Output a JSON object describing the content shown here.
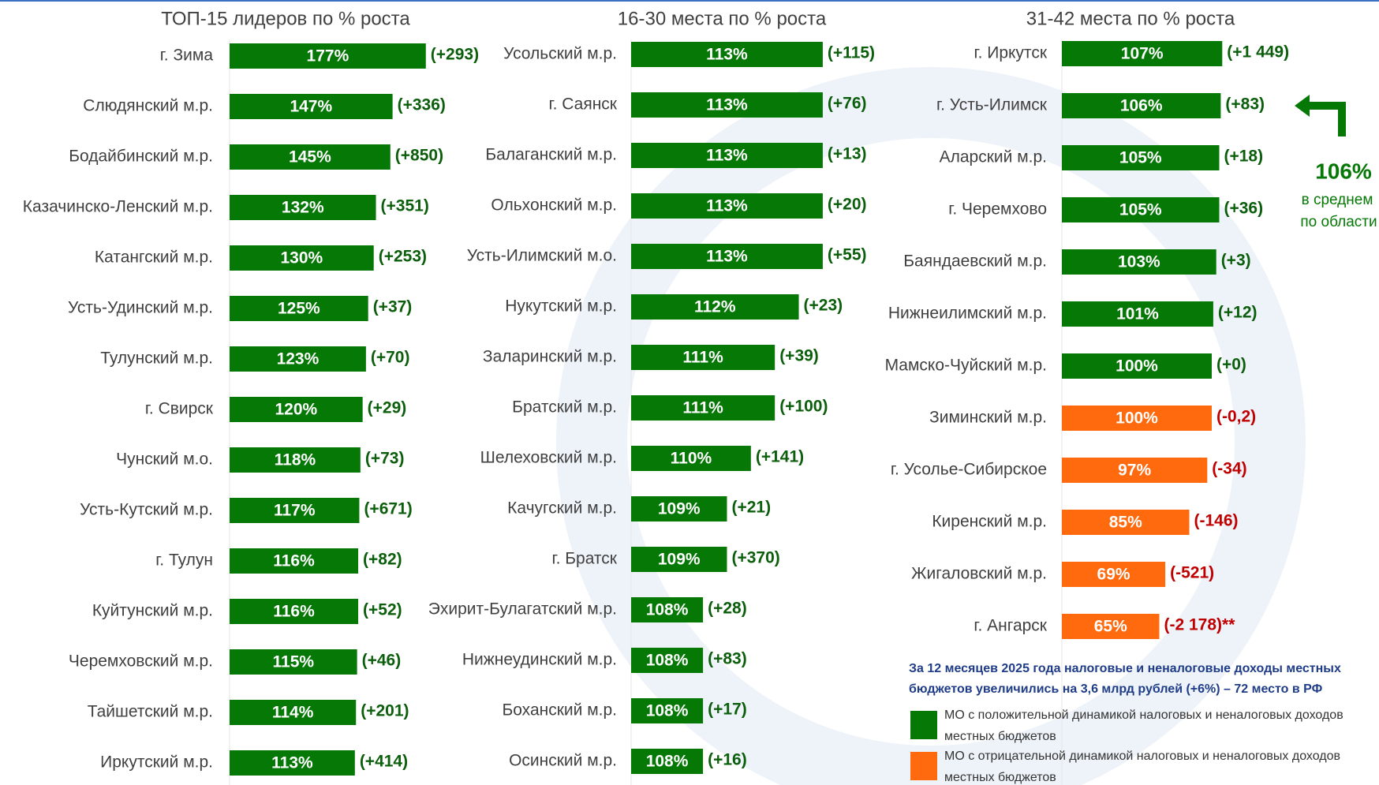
{
  "chart_data": [
    {
      "type": "bar",
      "title": "ТОП-15 лидеров по % роста",
      "categories": [
        "г. Зима",
        "Слюдянский м.р.",
        "Бодайбинский м.р.",
        "Казачинско-Ленский м.р.",
        "Катангский м.р.",
        "Усть-Удинский м.р.",
        "Тулунский м.р.",
        "г. Свирск",
        "Чунский м.о.",
        "Усть-Кутский м.р.",
        "г. Тулун",
        "Куйтунский м.р.",
        "Черемховский м.р.",
        "Тайшетский м.р.",
        "Иркутский м.р."
      ],
      "values": [
        177,
        147,
        145,
        132,
        130,
        125,
        123,
        120,
        118,
        117,
        116,
        116,
        115,
        114,
        113
      ],
      "value_labels": [
        "177%",
        "147%",
        "145%",
        "132%",
        "130%",
        "125%",
        "123%",
        "120%",
        "118%",
        "117%",
        "116%",
        "116%",
        "115%",
        "114%",
        "113%"
      ],
      "change_labels": [
        "(+293)",
        "(+336)",
        "(+850)",
        "(+351)",
        "(+253)",
        "(+37)",
        "(+70)",
        "(+29)",
        "(+73)",
        "(+671)",
        "(+82)",
        "(+52)",
        "(+46)",
        "(+201)",
        "(+414)"
      ],
      "colors": [
        "#067806",
        "#067806",
        "#067806",
        "#067806",
        "#067806",
        "#067806",
        "#067806",
        "#067806",
        "#067806",
        "#067806",
        "#067806",
        "#067806",
        "#067806",
        "#067806",
        "#067806"
      ],
      "xlim": [
        0,
        180
      ]
    },
    {
      "type": "bar",
      "title": "16-30 места по % роста",
      "categories": [
        "Усольский м.р.",
        "г. Саянск",
        "Балаганский м.р.",
        "Ольхонский м.р.",
        "Усть-Илимский м.о.",
        "Нукутский м.р.",
        "Заларинский м.р.",
        "Братский м.р.",
        "Шелеховский м.р.",
        "Качугский м.р.",
        "г. Братск",
        "Эхирит-Булагатский м.р.",
        "Нижнеудинский м.р.",
        "Боханский м.р.",
        "Осинский м.р."
      ],
      "values": [
        113,
        113,
        113,
        113,
        113,
        112,
        111,
        111,
        110,
        109,
        109,
        108,
        108,
        108,
        108
      ],
      "value_labels": [
        "113%",
        "113%",
        "113%",
        "113%",
        "113%",
        "112%",
        "111%",
        "111%",
        "110%",
        "109%",
        "109%",
        "108%",
        "108%",
        "108%",
        "108%"
      ],
      "change_labels": [
        "(+115)",
        "(+76)",
        "(+13)",
        "(+20)",
        "(+55)",
        "(+23)",
        "(+39)",
        "(+100)",
        "(+141)",
        "(+21)",
        "(+370)",
        "(+28)",
        "(+83)",
        "(+17)",
        "(+16)"
      ],
      "colors": [
        "#067806",
        "#067806",
        "#067806",
        "#067806",
        "#067806",
        "#067806",
        "#067806",
        "#067806",
        "#067806",
        "#067806",
        "#067806",
        "#067806",
        "#067806",
        "#067806",
        "#067806"
      ],
      "xlim": [
        105,
        113.2
      ]
    },
    {
      "type": "bar",
      "title": "31-42 места по % роста",
      "categories": [
        "г. Иркутск",
        "г. Усть-Илимск",
        "Аларский м.р.",
        "г. Черемхово",
        "Баяндаевский м.р.",
        "Нижнеилимский м.р.",
        "Мамско-Чуйский м.р.",
        "Зиминский м.р.",
        "г. Усолье-Сибирское",
        "Киренский м.р.",
        "Жигаловский м.р.",
        "г. Ангарск"
      ],
      "values": [
        107,
        106,
        105,
        105,
        103,
        101,
        100,
        100,
        97,
        85,
        69,
        65
      ],
      "value_labels": [
        "107%",
        "106%",
        "105%",
        "105%",
        "103%",
        "101%",
        "100%",
        "100%",
        "97%",
        "85%",
        "69%",
        "65%"
      ],
      "change_labels": [
        "(+1 449)",
        "(+83)",
        "(+18)",
        "(+36)",
        "(+3)",
        "(+12)",
        "(+0)",
        "(-0,2)",
        "(-34)",
        "(-146)",
        "(-521)",
        "(-2 178)**"
      ],
      "colors": [
        "#067806",
        "#067806",
        "#067806",
        "#067806",
        "#067806",
        "#067806",
        "#067806",
        "#ff6a0e",
        "#ff6a0e",
        "#ff6a0e",
        "#ff6a0e",
        "#ff6a0e"
      ],
      "xlim": [
        0,
        110
      ]
    }
  ],
  "average": {
    "label": "106%",
    "text": [
      "в среднем",
      "по области"
    ]
  },
  "note": [
    "За 12 месяцев 2025 года налоговые и неналоговые доходы местных",
    "бюджетов увеличились на 3,6 млрд рублей (+6%) – 72 место в РФ"
  ],
  "legend": [
    {
      "color": "#067806",
      "lines": [
        "МО с положительной динамикой налоговых и неналоговых доходов",
        "местных бюджетов"
      ]
    },
    {
      "color": "#ff6a0e",
      "lines": [
        "МО с отрицательной динамикой налоговых и неналоговых доходов",
        "местных бюджетов"
      ]
    }
  ]
}
